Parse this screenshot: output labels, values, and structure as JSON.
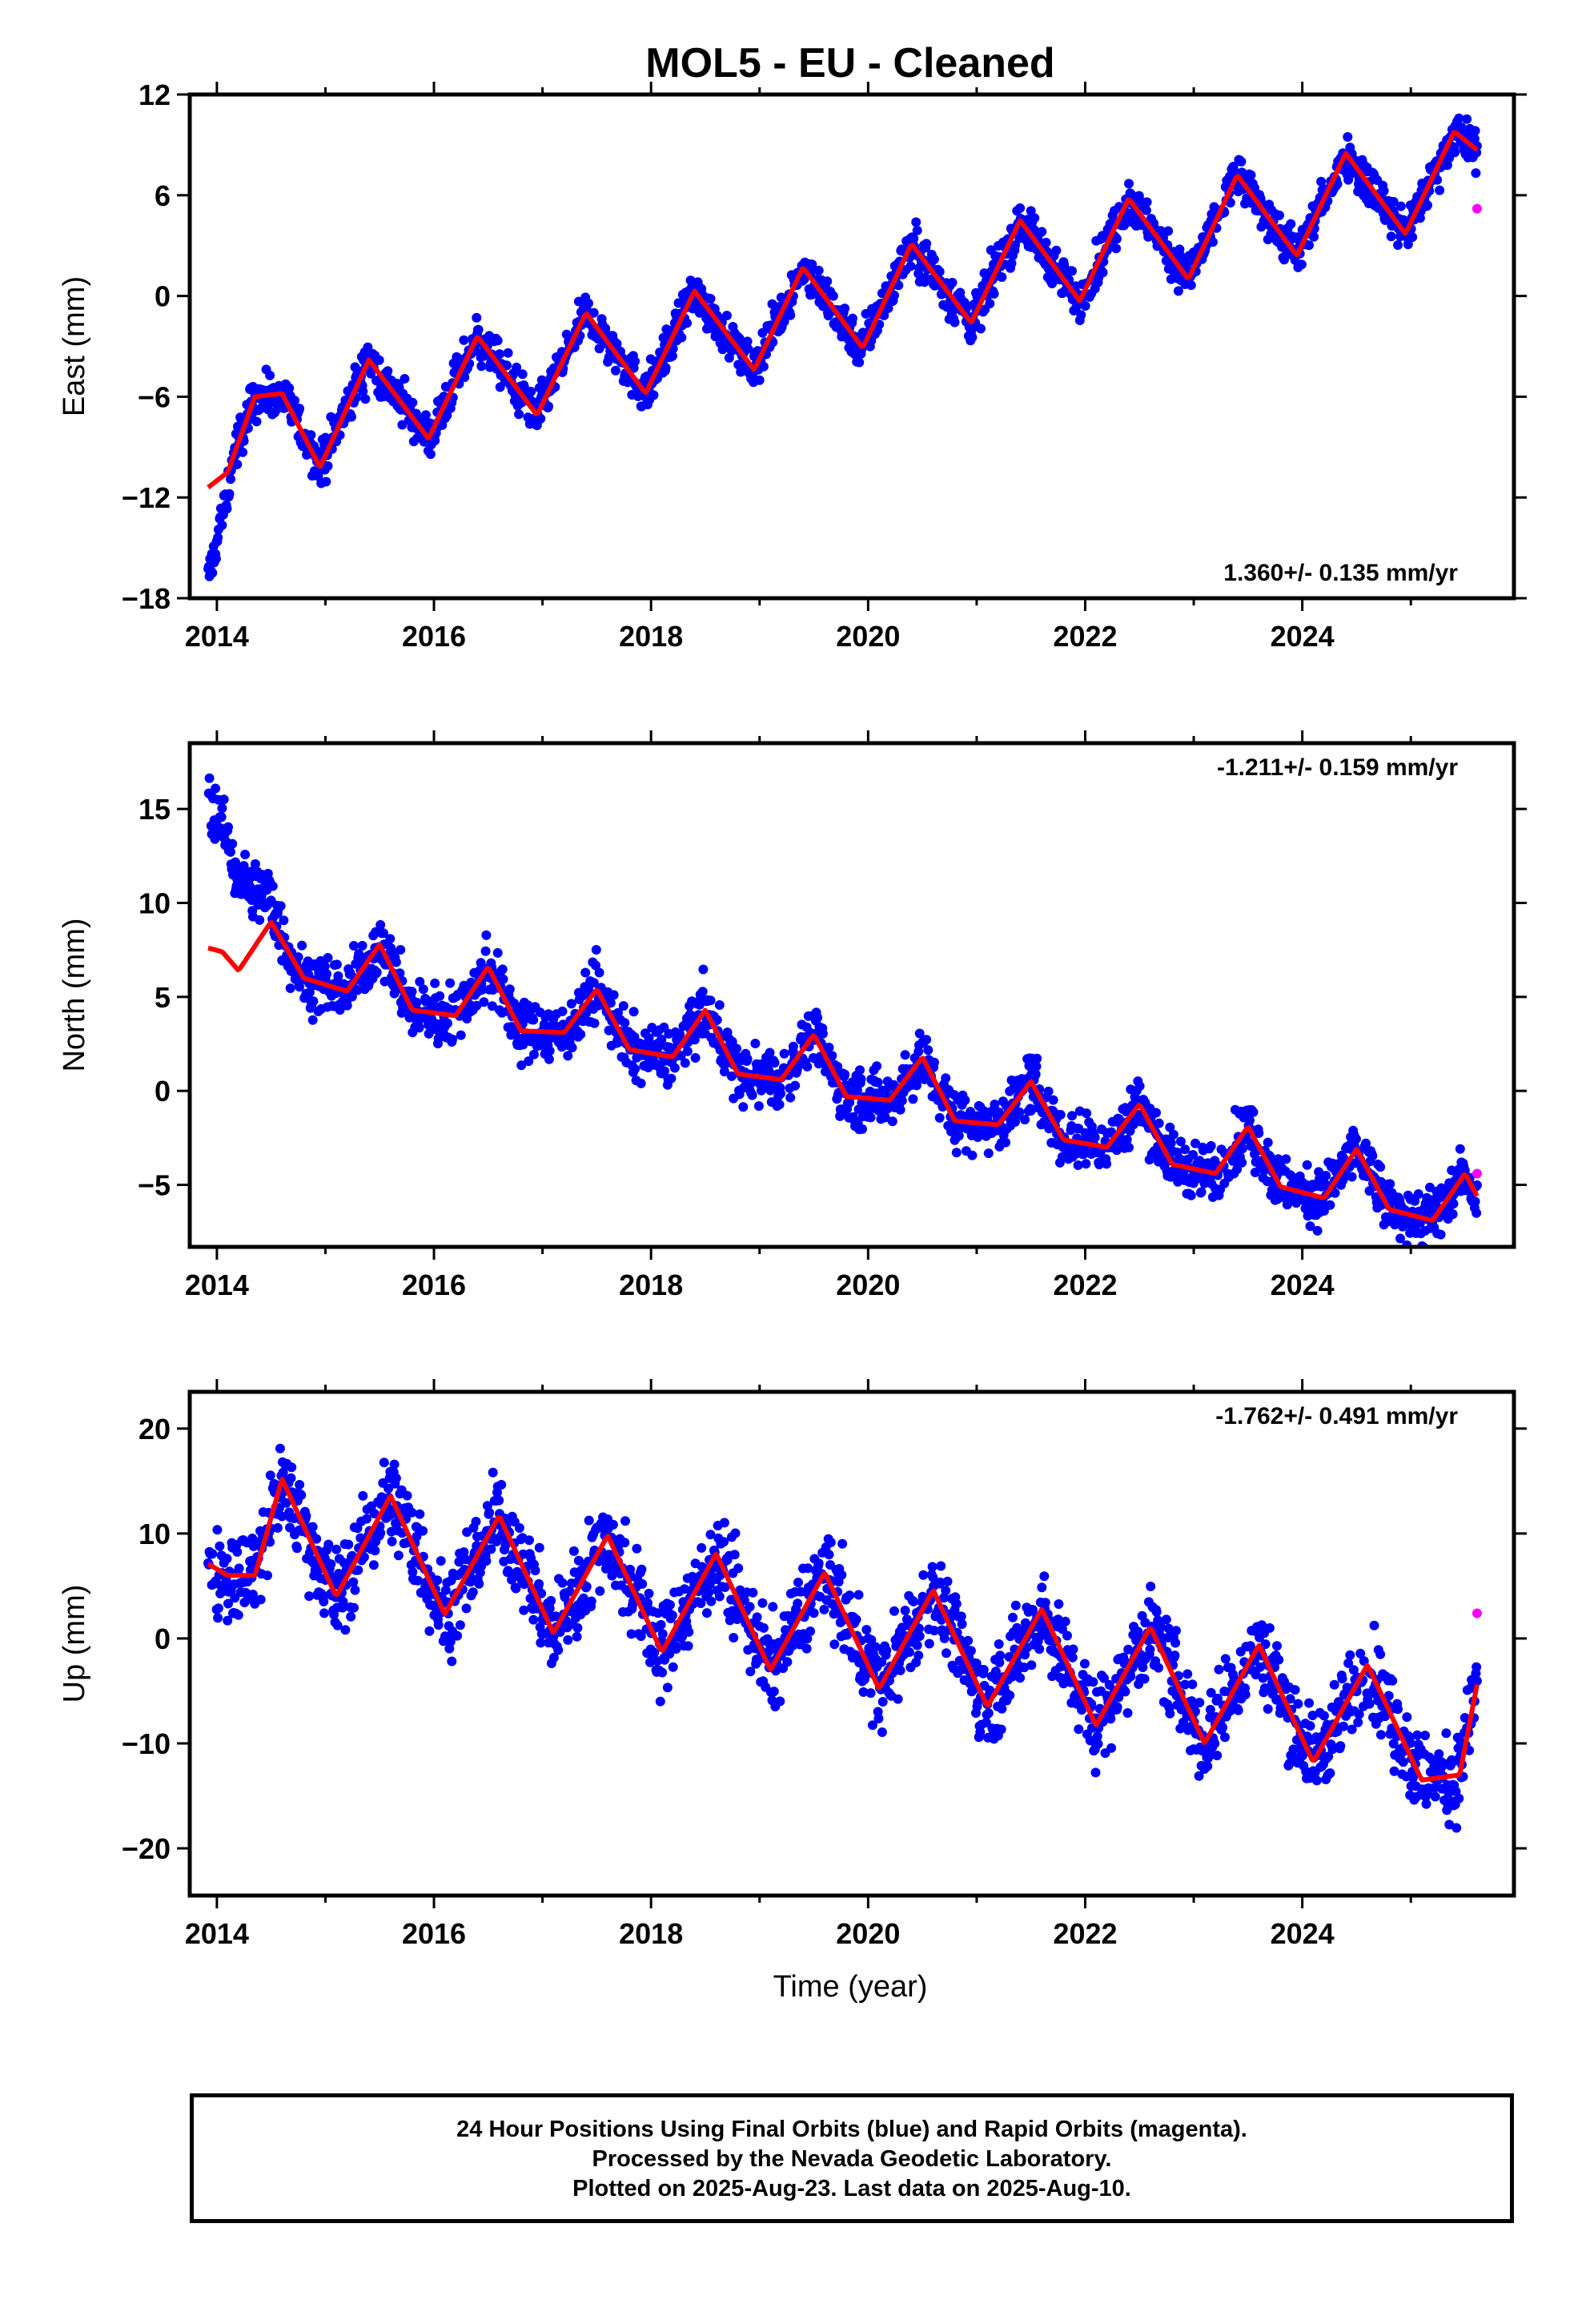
{
  "chart_data": {
    "title": "MOL5  - EU - Cleaned",
    "xlabel": "Time (year)",
    "x_range": [
      2013.75,
      2025.95
    ],
    "x_ticks": [
      2014,
      2016,
      2018,
      2020,
      2022,
      2024
    ],
    "last_epoch": 2025.61,
    "colors": {
      "final_orbits": "#0000ff",
      "rapid_orbits": "#ff00ff",
      "model": "#ff0000"
    },
    "panels": [
      {
        "name": "East",
        "ylabel": "East (mm)",
        "type": "scatter",
        "ylim": [
          -18,
          12
        ],
        "yticks": [
          12,
          6,
          0,
          -6,
          -12,
          -18
        ],
        "ytick_labels": [
          "12",
          "6",
          "0",
          "−6",
          "−12",
          "−18"
        ],
        "rate_label": "1.360+/- 0.135 mm/yr",
        "rate_position": "bottom-right",
        "model_curve": {
          "x": [
            2013.92,
            2014.1,
            2014.35,
            2014.6,
            2014.95,
            2015.4,
            2015.95,
            2016.4,
            2016.95,
            2017.4,
            2017.95,
            2018.4,
            2018.95,
            2019.4,
            2019.95,
            2020.4,
            2020.95,
            2021.4,
            2021.95,
            2022.4,
            2022.95,
            2023.4,
            2023.95,
            2024.4,
            2024.95,
            2025.4,
            2025.61
          ],
          "y": [
            -11.4,
            -10.5,
            -6.0,
            -5.8,
            -10.2,
            -3.8,
            -8.5,
            -2.4,
            -7.1,
            -1.0,
            -5.8,
            0.3,
            -4.4,
            1.7,
            -3.1,
            3.1,
            -1.6,
            4.5,
            -0.3,
            5.8,
            1.0,
            7.2,
            2.4,
            8.5,
            3.7,
            9.8,
            8.7
          ]
        },
        "scatter_spread": 0.9,
        "rapid_point": {
          "x": 2025.61,
          "y": 5.2
        }
      },
      {
        "name": "North",
        "ylabel": "North (mm)",
        "type": "scatter",
        "ylim": [
          -8.3,
          18.5
        ],
        "yticks": [
          15,
          10,
          5,
          0,
          -5
        ],
        "ytick_labels": [
          "15",
          "10",
          "5",
          "0",
          "−5"
        ],
        "rate_label": "-1.211+/- 0.159 mm/yr",
        "rate_position": "top-right",
        "model_curve": {
          "x": [
            2013.92,
            2014.05,
            2014.2,
            2014.5,
            2014.8,
            2015.2,
            2015.5,
            2015.8,
            2016.2,
            2016.5,
            2016.8,
            2017.2,
            2017.5,
            2017.8,
            2018.2,
            2018.5,
            2018.8,
            2019.2,
            2019.5,
            2019.8,
            2020.2,
            2020.5,
            2020.8,
            2021.2,
            2021.5,
            2021.8,
            2022.2,
            2022.5,
            2022.8,
            2023.2,
            2023.5,
            2023.8,
            2024.2,
            2024.5,
            2024.8,
            2025.2,
            2025.5,
            2025.61
          ],
          "y": [
            7.6,
            7.4,
            6.4,
            9.0,
            6.0,
            5.3,
            7.8,
            4.3,
            4.0,
            6.6,
            3.2,
            3.1,
            5.4,
            2.2,
            1.8,
            4.3,
            0.9,
            0.6,
            3.0,
            -0.3,
            -0.5,
            1.8,
            -1.6,
            -1.8,
            0.5,
            -2.6,
            -3.0,
            -0.7,
            -3.9,
            -4.4,
            -1.9,
            -5.1,
            -5.7,
            -3.1,
            -6.3,
            -6.9,
            -4.4,
            -5.6
          ]
        },
        "scatter_spread": 1.1,
        "rapid_point": {
          "x": 2025.61,
          "y": -4.4
        }
      },
      {
        "name": "Up",
        "ylabel": "Up (mm)",
        "type": "scatter",
        "ylim": [
          -24.5,
          23.5
        ],
        "yticks": [
          20,
          10,
          0,
          -10,
          -20
        ],
        "ytick_labels": [
          "20",
          "10",
          "0",
          "−10",
          "−20"
        ],
        "rate_label": "-1.762+/- 0.491 mm/yr",
        "rate_position": "top-right",
        "model_curve": {
          "x": [
            2013.92,
            2014.1,
            2014.35,
            2014.6,
            2015.1,
            2015.6,
            2016.1,
            2016.6,
            2017.1,
            2017.6,
            2018.1,
            2018.6,
            2019.1,
            2019.6,
            2020.1,
            2020.6,
            2021.1,
            2021.6,
            2022.1,
            2022.6,
            2023.1,
            2023.6,
            2024.1,
            2024.6,
            2025.1,
            2025.45,
            2025.61
          ],
          "y": [
            7.1,
            6.0,
            6.0,
            15.2,
            4.0,
            13.6,
            2.3,
            11.7,
            0.5,
            9.8,
            -1.3,
            8.1,
            -3.0,
            6.3,
            -4.8,
            4.6,
            -6.5,
            2.8,
            -8.3,
            1.1,
            -10.0,
            -0.6,
            -11.8,
            -2.5,
            -13.5,
            -13.0,
            -4.4
          ]
        },
        "scatter_spread": 3.0,
        "rapid_point": {
          "x": 2025.61,
          "y": 2.4
        }
      }
    ]
  },
  "footer": {
    "line1": "24 Hour Positions Using Final Orbits (blue) and Rapid Orbits (magenta).",
    "line2": "Processed by the Nevada Geodetic Laboratory.",
    "line3": "Plotted on 2025-Aug-23. Last data on 2025-Aug-10."
  }
}
